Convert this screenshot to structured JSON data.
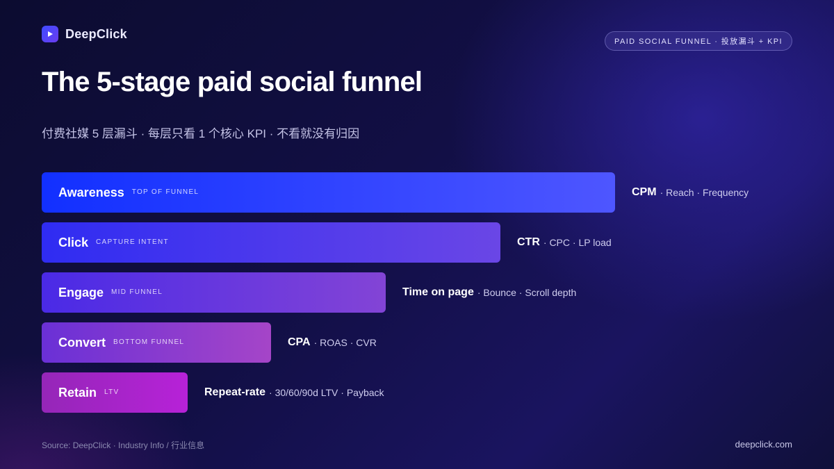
{
  "brand": {
    "name": "DeepClick",
    "logo_icon": "play-icon"
  },
  "badge": "PAID SOCIAL FUNNEL · 投放漏斗 + KPI",
  "title": "The 5-stage paid social funnel",
  "subtitle": "付费社媒 5 层漏斗 · 每层只看 1 个核心 KPI · 不看就没有归因",
  "stages": [
    {
      "name": "Awareness",
      "tag": "TOP OF FUNNEL",
      "kpi_primary": "CPM",
      "kpi_rest": "· Reach · Frequency",
      "gradient": [
        "#1230ff",
        "#4e56ff"
      ]
    },
    {
      "name": "Click",
      "tag": "CAPTURE INTENT",
      "kpi_primary": "CTR",
      "kpi_rest": "· CPC · LP load",
      "gradient": [
        "#2f2cf2",
        "#6a46e6"
      ]
    },
    {
      "name": "Engage",
      "tag": "MID FUNNEL",
      "kpi_primary": "Time on page",
      "kpi_rest": "· Bounce · Scroll depth",
      "gradient": [
        "#4a2ae6",
        "#8344d6"
      ]
    },
    {
      "name": "Convert",
      "tag": "BOTTOM FUNNEL",
      "kpi_primary": "CPA",
      "kpi_rest": "· ROAS · CVR",
      "gradient": [
        "#6a30d6",
        "#a545c8"
      ]
    },
    {
      "name": "Retain",
      "tag": "LTV",
      "kpi_primary": "Repeat-rate",
      "kpi_rest": "· 30/60/90d LTV · Payback",
      "gradient": [
        "#9526b8",
        "#b722d8"
      ]
    }
  ],
  "footer": {
    "source": "Source: DeepClick · Industry Info / 行业信息",
    "url": "deepclick.com"
  }
}
